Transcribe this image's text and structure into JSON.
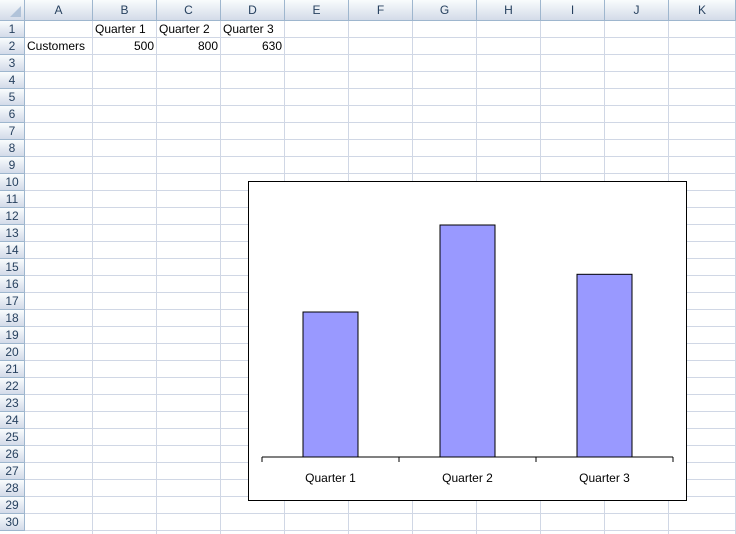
{
  "spreadsheet": {
    "columns": [
      "A",
      "B",
      "C",
      "D",
      "E",
      "F",
      "G",
      "H",
      "I",
      "J",
      "K"
    ],
    "rows": [
      "1",
      "2",
      "3",
      "4",
      "5",
      "6",
      "7",
      "8",
      "9",
      "10",
      "11",
      "12",
      "13",
      "14",
      "15",
      "16",
      "17",
      "18",
      "19",
      "20",
      "21",
      "22",
      "23",
      "24",
      "25",
      "26",
      "27",
      "28",
      "29",
      "30"
    ],
    "cells": {
      "B1": "Quarter 1",
      "C1": "Quarter 2",
      "D1": "Quarter 3",
      "A2": "Customers",
      "B2": "500",
      "C2": "800",
      "D2": "630"
    }
  },
  "chart_data": {
    "type": "bar",
    "categories": [
      "Quarter 1",
      "Quarter 2",
      "Quarter 3"
    ],
    "values": [
      500,
      800,
      630
    ],
    "title": "",
    "xlabel": "",
    "ylabel": "",
    "ylim": [
      0,
      800
    ],
    "grid": false,
    "legend": "none",
    "bar_color": "#9999ff",
    "bar_border_color": "#000000"
  }
}
